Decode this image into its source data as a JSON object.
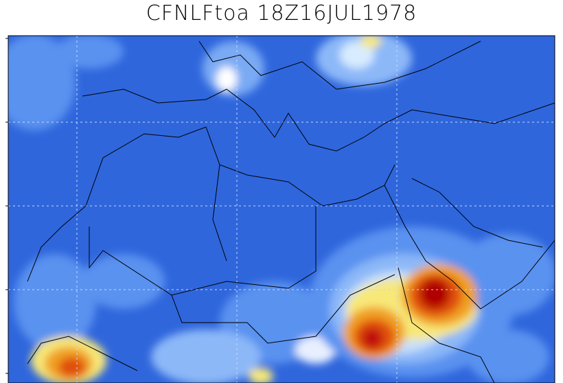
{
  "title": "CFNLFtoa 18Z16JUL1978"
}
